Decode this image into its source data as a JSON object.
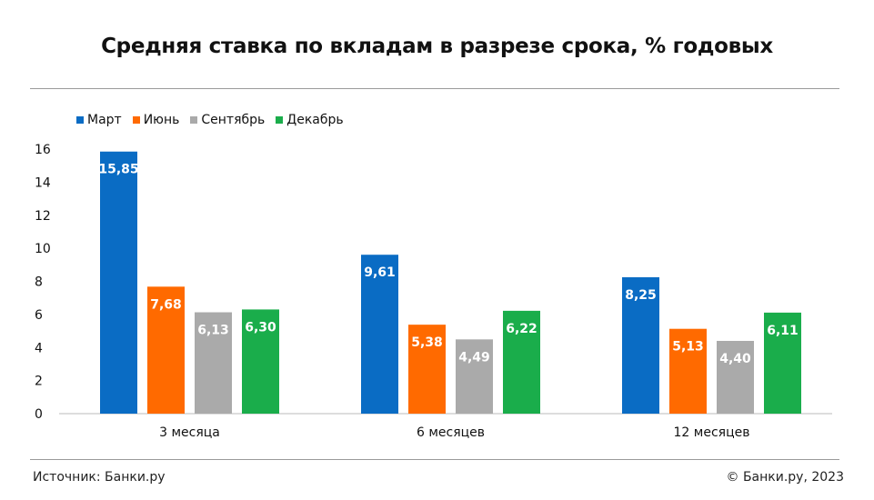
{
  "chart_data": {
    "type": "bar",
    "title": "Средняя ставка по вкладам в разрезе срока, % годовых",
    "categories": [
      "3 месяца",
      "6 месяцев",
      "12 месяцев"
    ],
    "series": [
      {
        "name": "Март",
        "color": "#0a6cc4",
        "values": [
          15.85,
          9.61,
          8.25
        ],
        "labels": [
          "15,85",
          "9,61",
          "8,25"
        ]
      },
      {
        "name": "Июнь",
        "color": "#ff6a00",
        "values": [
          7.68,
          5.38,
          5.13
        ],
        "labels": [
          "7,68",
          "5,38",
          "5,13"
        ]
      },
      {
        "name": "Сентябрь",
        "color": "#aaaaaa",
        "values": [
          6.13,
          4.49,
          4.4
        ],
        "labels": [
          "6,13",
          "4,49",
          "4,40"
        ]
      },
      {
        "name": "Декабрь",
        "color": "#1aad4b",
        "values": [
          6.3,
          6.22,
          6.11
        ],
        "labels": [
          "6,30",
          "6,22",
          "6,11"
        ]
      }
    ],
    "ylim": [
      0,
      16
    ],
    "yticks": [
      "0",
      "2",
      "4",
      "6",
      "8",
      "10",
      "12",
      "14",
      "16"
    ],
    "grid": false,
    "legend": "top-left"
  },
  "footer": {
    "source": "Источник: Банки.ру",
    "copyright": "© Банки.ру, 2023"
  }
}
